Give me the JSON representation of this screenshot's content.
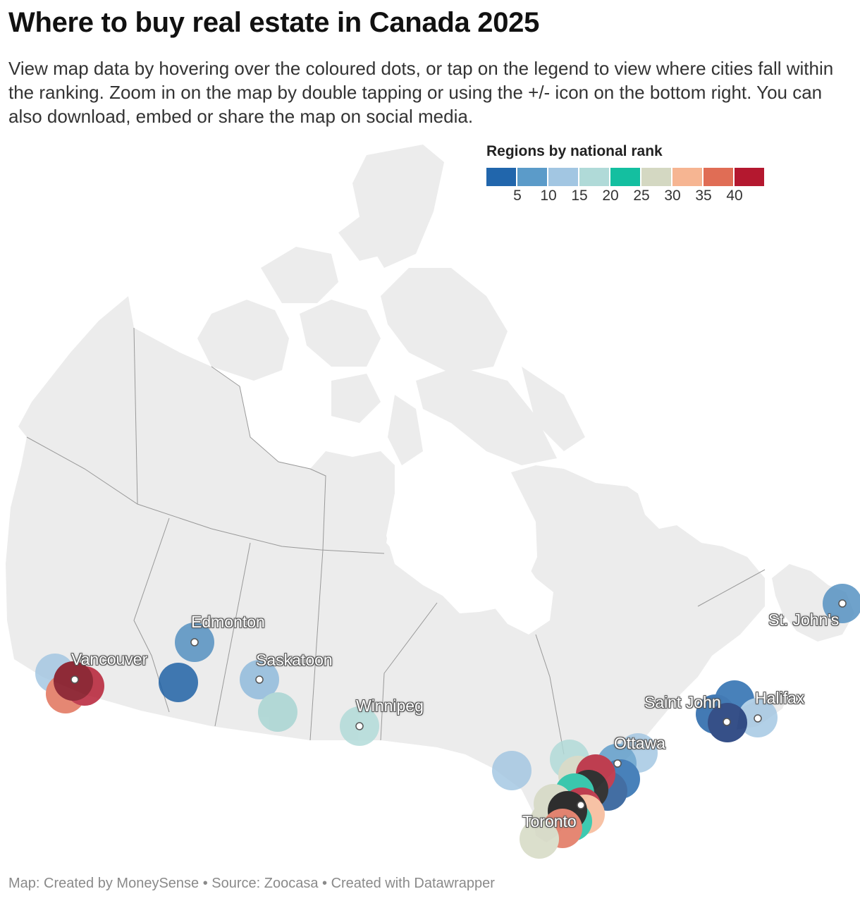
{
  "header": {
    "title": "Where to buy real estate in Canada 2025",
    "description": "View map data by hovering over the coloured dots, or tap on the legend to view where cities fall within the ranking. Zoom in on the map by double tapping or using the +/- icon on the bottom right. You can also download, embed or share the map on social media."
  },
  "legend": {
    "title": "Regions by national rank",
    "colors": [
      "#2166ac",
      "#5b9bc9",
      "#a2c6e2",
      "#b0dad8",
      "#14bfa0",
      "#d4d8c2",
      "#f6b592",
      "#e06d55",
      "#b4182f"
    ],
    "ticks": [
      "5",
      "10",
      "15",
      "20",
      "25",
      "30",
      "35",
      "40"
    ]
  },
  "cities": [
    {
      "name": "Vancouver"
    },
    {
      "name": "Edmonton"
    },
    {
      "name": "Saskatoon"
    },
    {
      "name": "Winnipeg"
    },
    {
      "name": "Ottawa"
    },
    {
      "name": "Toronto"
    },
    {
      "name": "Saint John"
    },
    {
      "name": "Halifax"
    },
    {
      "name": "St. John's"
    }
  ],
  "footer": {
    "text": "Map: Created by MoneySense • Source: Zoocasa  • Created with Datawrapper"
  }
}
